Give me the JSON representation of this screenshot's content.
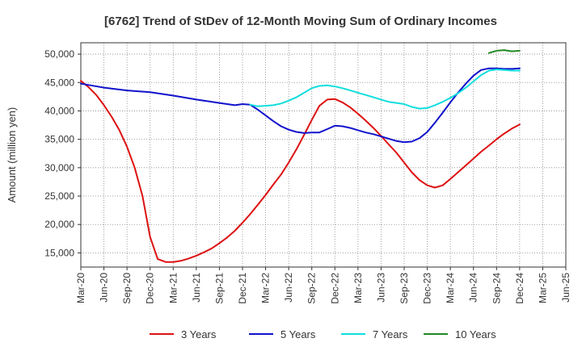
{
  "chart_data": {
    "type": "line",
    "title": "[6762]  Trend of StDev of 12-Month Moving Sum of Ordinary Incomes",
    "xlabel": "",
    "ylabel": "Amount (million yen)",
    "ylim": [
      12500,
      52000
    ],
    "yticks": [
      15000,
      20000,
      25000,
      30000,
      35000,
      40000,
      45000,
      50000
    ],
    "ytick_labels": [
      "15,000",
      "20,000",
      "25,000",
      "30,000",
      "35,000",
      "40,000",
      "45,000",
      "50,000"
    ],
    "xlim": [
      0,
      21
    ],
    "xtick_labels": [
      "Mar-20",
      "Jun-20",
      "Sep-20",
      "Dec-20",
      "Mar-21",
      "Jun-21",
      "Sep-21",
      "Dec-21",
      "Mar-22",
      "Jun-22",
      "Sep-22",
      "Dec-22",
      "Mar-23",
      "Jun-23",
      "Sep-23",
      "Dec-23",
      "Mar-24",
      "Jun-24",
      "Sep-24",
      "Dec-24",
      "Mar-25",
      "Jun-25"
    ],
    "grid": true,
    "legend_position": "bottom",
    "series": [
      {
        "name": "3 Years",
        "color": "#dd1111",
        "points": [
          [
            0,
            45300
          ],
          [
            0.33,
            44200
          ],
          [
            0.67,
            42800
          ],
          [
            1,
            41000
          ],
          [
            1.33,
            39000
          ],
          [
            1.67,
            36600
          ],
          [
            2,
            33700
          ],
          [
            2.33,
            30000
          ],
          [
            2.67,
            25000
          ],
          [
            3,
            17800
          ],
          [
            3.33,
            13900
          ],
          [
            3.67,
            13400
          ],
          [
            4,
            13400
          ],
          [
            4.33,
            13600
          ],
          [
            4.67,
            14000
          ],
          [
            5,
            14500
          ],
          [
            5.33,
            15100
          ],
          [
            5.67,
            15800
          ],
          [
            6,
            16700
          ],
          [
            6.33,
            17700
          ],
          [
            6.67,
            18900
          ],
          [
            7,
            20300
          ],
          [
            7.33,
            21800
          ],
          [
            7.67,
            23500
          ],
          [
            8,
            25200
          ],
          [
            8.33,
            27000
          ],
          [
            8.67,
            28800
          ],
          [
            9,
            30900
          ],
          [
            9.33,
            33200
          ],
          [
            9.67,
            35800
          ],
          [
            10,
            38400
          ],
          [
            10.33,
            40900
          ],
          [
            10.67,
            42000
          ],
          [
            11,
            42100
          ],
          [
            11.33,
            41500
          ],
          [
            11.67,
            40600
          ],
          [
            12,
            39500
          ],
          [
            12.33,
            38300
          ],
          [
            12.67,
            37000
          ],
          [
            13,
            35600
          ],
          [
            13.33,
            34100
          ],
          [
            13.67,
            32600
          ],
          [
            14,
            30900
          ],
          [
            14.33,
            29200
          ],
          [
            14.67,
            27800
          ],
          [
            15,
            26900
          ],
          [
            15.33,
            26500
          ],
          [
            15.67,
            26900
          ],
          [
            16,
            28000
          ],
          [
            16.33,
            29200
          ],
          [
            16.67,
            30400
          ],
          [
            17,
            31600
          ],
          [
            17.33,
            32800
          ],
          [
            17.67,
            33900
          ],
          [
            18,
            35000
          ],
          [
            18.33,
            36000
          ],
          [
            18.67,
            36900
          ],
          [
            19,
            37600
          ]
        ]
      },
      {
        "name": "5 Years",
        "color": "#1111cc",
        "points": [
          [
            0,
            44800
          ],
          [
            1,
            44100
          ],
          [
            2,
            43600
          ],
          [
            3,
            43300
          ],
          [
            4,
            42700
          ],
          [
            5,
            42000
          ],
          [
            6,
            41400
          ],
          [
            6.67,
            41000
          ],
          [
            7,
            41200
          ],
          [
            7.33,
            41100
          ],
          [
            7.67,
            40200
          ],
          [
            8,
            39200
          ],
          [
            8.33,
            38200
          ],
          [
            8.67,
            37300
          ],
          [
            9,
            36700
          ],
          [
            9.33,
            36300
          ],
          [
            9.67,
            36100
          ],
          [
            10,
            36200
          ],
          [
            10.33,
            36200
          ],
          [
            10.67,
            36800
          ],
          [
            11,
            37400
          ],
          [
            11.33,
            37300
          ],
          [
            11.67,
            37000
          ],
          [
            12,
            36600
          ],
          [
            12.33,
            36200
          ],
          [
            12.67,
            35900
          ],
          [
            13,
            35500
          ],
          [
            13.33,
            35100
          ],
          [
            13.67,
            34700
          ],
          [
            14,
            34500
          ],
          [
            14.33,
            34600
          ],
          [
            14.67,
            35200
          ],
          [
            15,
            36300
          ],
          [
            15.33,
            37900
          ],
          [
            15.67,
            39700
          ],
          [
            16,
            41500
          ],
          [
            16.33,
            43200
          ],
          [
            16.67,
            44800
          ],
          [
            17,
            46200
          ],
          [
            17.33,
            47200
          ],
          [
            17.67,
            47500
          ],
          [
            18,
            47500
          ],
          [
            18.33,
            47400
          ],
          [
            18.67,
            47400
          ],
          [
            19,
            47500
          ]
        ]
      },
      {
        "name": "7 Years",
        "color": "#11dddd",
        "points": [
          [
            7.33,
            41100
          ],
          [
            7.67,
            40800
          ],
          [
            8,
            40900
          ],
          [
            8.33,
            41000
          ],
          [
            8.67,
            41300
          ],
          [
            9,
            41800
          ],
          [
            9.33,
            42400
          ],
          [
            9.67,
            43200
          ],
          [
            10,
            44000
          ],
          [
            10.33,
            44400
          ],
          [
            10.67,
            44500
          ],
          [
            11,
            44300
          ],
          [
            11.33,
            44000
          ],
          [
            11.67,
            43600
          ],
          [
            12,
            43200
          ],
          [
            12.33,
            42800
          ],
          [
            12.67,
            42400
          ],
          [
            13,
            42000
          ],
          [
            13.33,
            41600
          ],
          [
            13.67,
            41400
          ],
          [
            14,
            41200
          ],
          [
            14.33,
            40700
          ],
          [
            14.67,
            40400
          ],
          [
            15,
            40500
          ],
          [
            15.33,
            41000
          ],
          [
            15.67,
            41600
          ],
          [
            16,
            42300
          ],
          [
            16.33,
            43100
          ],
          [
            16.67,
            44100
          ],
          [
            17,
            45200
          ],
          [
            17.33,
            46300
          ],
          [
            17.67,
            47100
          ],
          [
            18,
            47300
          ],
          [
            18.33,
            47200
          ],
          [
            18.67,
            47100
          ],
          [
            19,
            47100
          ]
        ]
      },
      {
        "name": "10 Years",
        "color": "#228822",
        "points": [
          [
            17.67,
            50200
          ],
          [
            18,
            50600
          ],
          [
            18.33,
            50700
          ],
          [
            18.67,
            50500
          ],
          [
            19,
            50600
          ]
        ]
      }
    ]
  }
}
